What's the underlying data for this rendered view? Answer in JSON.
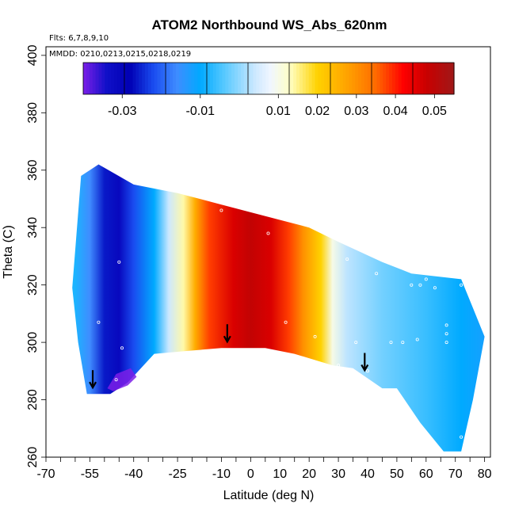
{
  "chart_data": {
    "type": "heatmap",
    "title": "ATOM2 Northbound WS_Abs_620nm",
    "notes": [
      "Flts: 6,7,8,9,10",
      "MMDD: 0210,0213,0215,0218,0219"
    ],
    "xlabel": "Latitude (deg N)",
    "ylabel": "Theta (C)",
    "xlim": [
      -70,
      82
    ],
    "ylim": [
      260,
      403
    ],
    "x_ticks": [
      -70,
      -55,
      -40,
      -25,
      -10,
      0,
      10,
      20,
      30,
      40,
      50,
      60,
      70,
      80
    ],
    "x_tick_labels": [
      "-70",
      "-55",
      "-40",
      "-25",
      "-10",
      "0",
      "10",
      "20",
      "30",
      "40",
      "50",
      "60",
      "70",
      "80"
    ],
    "y_ticks": [
      260,
      280,
      300,
      320,
      340,
      360,
      380,
      400
    ],
    "y_tick_labels": [
      "260",
      "280",
      "300",
      "320",
      "340",
      "360",
      "380",
      "400"
    ],
    "colorbar": {
      "range": [
        -0.04,
        0.055
      ],
      "ticks": [
        -0.03,
        -0.01,
        0.01,
        0.02,
        0.03,
        0.04,
        0.05
      ],
      "tick_labels": [
        "-0.03",
        "-0.01",
        "0.01",
        "0.02",
        "0.03",
        "0.04",
        "0.05"
      ],
      "stops": [
        {
          "v": -0.04,
          "c": "#7b1fe8"
        },
        {
          "v": -0.034,
          "c": "#1010c8"
        },
        {
          "v": -0.028,
          "c": "#0000b4"
        },
        {
          "v": -0.022,
          "c": "#1a4cf0"
        },
        {
          "v": -0.016,
          "c": "#3f8cff"
        },
        {
          "v": -0.01,
          "c": "#00aaff"
        },
        {
          "v": -0.004,
          "c": "#55c8ff"
        },
        {
          "v": 0.004,
          "c": "#cce8ff"
        },
        {
          "v": 0.008,
          "c": "#f0f6ff"
        },
        {
          "v": 0.013,
          "c": "#ffffc4"
        },
        {
          "v": 0.02,
          "c": "#ffd200"
        },
        {
          "v": 0.028,
          "c": "#ffa000"
        },
        {
          "v": 0.035,
          "c": "#ff6a00"
        },
        {
          "v": 0.042,
          "c": "#ff0000"
        },
        {
          "v": 0.048,
          "c": "#c80000"
        },
        {
          "v": 0.055,
          "c": "#a01818"
        }
      ]
    },
    "field_profile": [
      {
        "lat": -60,
        "value": -0.008
      },
      {
        "lat": -55,
        "value": -0.016
      },
      {
        "lat": -50,
        "value": -0.026
      },
      {
        "lat": -45,
        "value": -0.031
      },
      {
        "lat": -40,
        "value": -0.022
      },
      {
        "lat": -33,
        "value": -0.01
      },
      {
        "lat": -28,
        "value": 0.004
      },
      {
        "lat": -23,
        "value": 0.014
      },
      {
        "lat": -19,
        "value": 0.026
      },
      {
        "lat": -14,
        "value": 0.038
      },
      {
        "lat": -6,
        "value": 0.046
      },
      {
        "lat": 0,
        "value": 0.049
      },
      {
        "lat": 7,
        "value": 0.046
      },
      {
        "lat": 13,
        "value": 0.038
      },
      {
        "lat": 18,
        "value": 0.03
      },
      {
        "lat": 24,
        "value": 0.02
      },
      {
        "lat": 28,
        "value": 0.01
      },
      {
        "lat": 33,
        "value": 0.003
      },
      {
        "lat": 45,
        "value": -0.002
      },
      {
        "lat": 60,
        "value": -0.006
      },
      {
        "lat": 72,
        "value": -0.01
      },
      {
        "lat": 80,
        "value": -0.012
      }
    ],
    "data_region": [
      {
        "lat": -61,
        "theta": 319
      },
      {
        "lat": -58,
        "theta": 358
      },
      {
        "lat": -52,
        "theta": 362
      },
      {
        "lat": -40,
        "theta": 355
      },
      {
        "lat": -25,
        "theta": 352
      },
      {
        "lat": -10,
        "theta": 348
      },
      {
        "lat": 5,
        "theta": 344
      },
      {
        "lat": 20,
        "theta": 340
      },
      {
        "lat": 30,
        "theta": 335
      },
      {
        "lat": 45,
        "theta": 328
      },
      {
        "lat": 55,
        "theta": 324
      },
      {
        "lat": 72,
        "theta": 322
      },
      {
        "lat": 76,
        "theta": 312
      },
      {
        "lat": 80,
        "theta": 302
      },
      {
        "lat": 76,
        "theta": 280
      },
      {
        "lat": 72,
        "theta": 262
      },
      {
        "lat": 66,
        "theta": 262
      },
      {
        "lat": 58,
        "theta": 272
      },
      {
        "lat": 50,
        "theta": 284
      },
      {
        "lat": 45,
        "theta": 284
      },
      {
        "lat": 35,
        "theta": 291
      },
      {
        "lat": 28,
        "theta": 292
      },
      {
        "lat": 15,
        "theta": 296
      },
      {
        "lat": 5,
        "theta": 298
      },
      {
        "lat": -10,
        "theta": 298
      },
      {
        "lat": -22,
        "theta": 297
      },
      {
        "lat": -33,
        "theta": 296
      },
      {
        "lat": -42,
        "theta": 286
      },
      {
        "lat": -48,
        "theta": 282
      },
      {
        "lat": -56,
        "theta": 282
      },
      {
        "lat": -59,
        "theta": 300
      }
    ],
    "purple_patch": [
      {
        "lat": -49,
        "theta": 284
      },
      {
        "lat": -46,
        "theta": 289
      },
      {
        "lat": -41,
        "theta": 291
      },
      {
        "lat": -39,
        "theta": 288
      },
      {
        "lat": -42,
        "theta": 285
      },
      {
        "lat": -47,
        "theta": 283
      }
    ],
    "flight_points": [
      {
        "lat": -45,
        "theta": 328
      },
      {
        "lat": -52,
        "theta": 307
      },
      {
        "lat": -44,
        "theta": 298
      },
      {
        "lat": -46,
        "theta": 287
      },
      {
        "lat": -10,
        "theta": 346
      },
      {
        "lat": 6,
        "theta": 338
      },
      {
        "lat": 12,
        "theta": 307
      },
      {
        "lat": 22,
        "theta": 302
      },
      {
        "lat": 33,
        "theta": 329
      },
      {
        "lat": 36,
        "theta": 300
      },
      {
        "lat": 43,
        "theta": 324
      },
      {
        "lat": 48,
        "theta": 300
      },
      {
        "lat": 52,
        "theta": 300
      },
      {
        "lat": 55,
        "theta": 320
      },
      {
        "lat": 58,
        "theta": 320
      },
      {
        "lat": 60,
        "theta": 322
      },
      {
        "lat": 57,
        "theta": 301
      },
      {
        "lat": 63,
        "theta": 319
      },
      {
        "lat": 67,
        "theta": 306
      },
      {
        "lat": 67,
        "theta": 303
      },
      {
        "lat": 67,
        "theta": 300
      },
      {
        "lat": 72,
        "theta": 320
      },
      {
        "lat": 72,
        "theta": 267
      },
      {
        "lat": 30,
        "theta": 292
      },
      {
        "lat": 40,
        "theta": 290
      }
    ],
    "arrows": [
      {
        "lat": -54,
        "theta": 287
      },
      {
        "lat": -8,
        "theta": 303
      },
      {
        "lat": 39,
        "theta": 293
      }
    ]
  },
  "colors": {
    "background": "#ffffff",
    "axis": "#000000",
    "arrow": "#000000",
    "point": "#ffffff"
  }
}
